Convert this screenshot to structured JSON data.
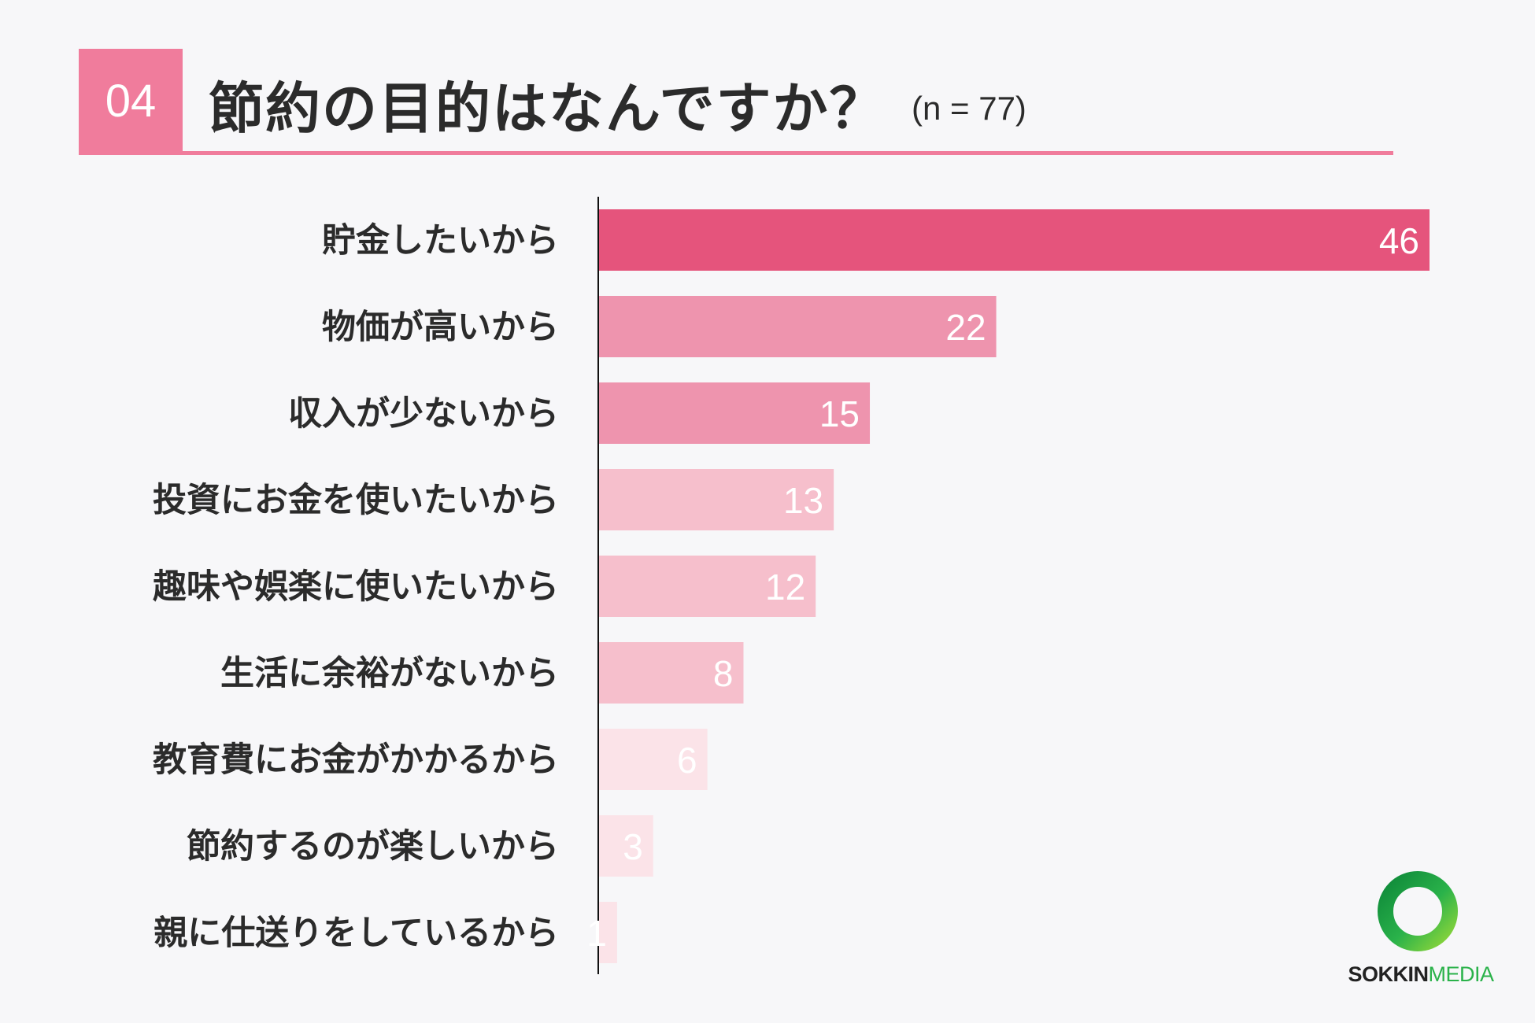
{
  "header": {
    "badge": "04",
    "title": "節約の目的はなんですか？",
    "sample": "(n = 77)"
  },
  "colors": {
    "accent": "#f07c9c",
    "bar_top": "#e5547c",
    "bar_mid": "#ee94ae",
    "bar_light": "#f6bfcc",
    "bar_pale": "#fbe3e8",
    "axis": "#111111",
    "logo_green": "#2ab24a"
  },
  "logo": {
    "icon": "green-ring-icon",
    "text_main": "SOKKIN",
    "text_sub": "MEDIA"
  },
  "chart_data": {
    "type": "bar",
    "orientation": "horizontal",
    "categories": [
      "貯金したいから",
      "物価が高いから",
      "収入が少ないから",
      "投資にお金を使いたいから",
      "趣味や娯楽に使いたいから",
      "生活に余裕がないから",
      "教育費にお金がかかるから",
      "節約するのが楽しいから",
      "親に仕送りをしているから"
    ],
    "values": [
      46,
      22,
      15,
      13,
      12,
      8,
      6,
      3,
      1
    ],
    "bar_colors": [
      "#e5547c",
      "#ee94ae",
      "#ee94ae",
      "#f6bfcc",
      "#f6bfcc",
      "#f6bfcc",
      "#fbe3e8",
      "#fbe3e8",
      "#fbe3e8"
    ],
    "title": "節約の目的はなんですか？",
    "xlabel": "",
    "ylabel": "",
    "xlim": [
      0,
      46
    ],
    "grid": false,
    "legend": "none",
    "data_labels": true
  }
}
